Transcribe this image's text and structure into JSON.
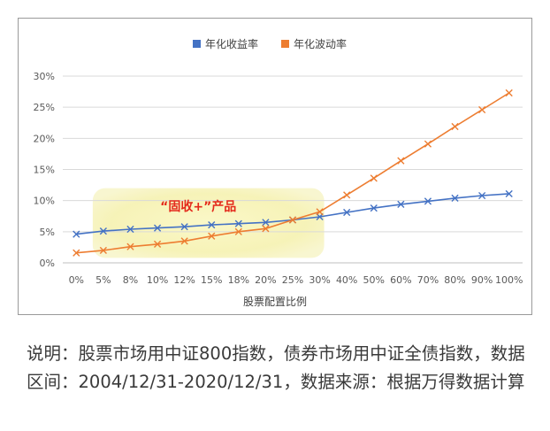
{
  "chart_data": {
    "type": "line",
    "title": "",
    "xlabel": "股票配置比例",
    "ylabel": "",
    "categories": [
      "0%",
      "5%",
      "8%",
      "10%",
      "12%",
      "15%",
      "18%",
      "20%",
      "25%",
      "30%",
      "40%",
      "50%",
      "60%",
      "70%",
      "80%",
      "90%",
      "100%"
    ],
    "ylim": [
      0,
      30
    ],
    "yticks": [
      "0%",
      "5%",
      "10%",
      "15%",
      "20%",
      "25%",
      "30%"
    ],
    "grid": "horizontal",
    "legend_position": "top",
    "series": [
      {
        "name": "年化收益率",
        "color": "#4472c4",
        "values": [
          4.6,
          5.1,
          5.4,
          5.6,
          5.8,
          6.1,
          6.3,
          6.5,
          6.9,
          7.4,
          8.1,
          8.8,
          9.4,
          9.9,
          10.4,
          10.8,
          11.1
        ]
      },
      {
        "name": "年化波动率",
        "color": "#ed7d31",
        "values": [
          1.6,
          2.0,
          2.6,
          3.0,
          3.5,
          4.3,
          5.0,
          5.5,
          6.9,
          8.2,
          10.9,
          13.6,
          16.4,
          19.1,
          21.9,
          24.6,
          27.3
        ]
      }
    ],
    "annotation": {
      "text": "“固收+”产品",
      "range": [
        "5%",
        "30%"
      ]
    }
  },
  "caption": "说明：股票市场用中证800指数，债券市场用中证全债指数，数据区间：2004/12/31-2020/12/31，数据来源：根据万得数据计算"
}
